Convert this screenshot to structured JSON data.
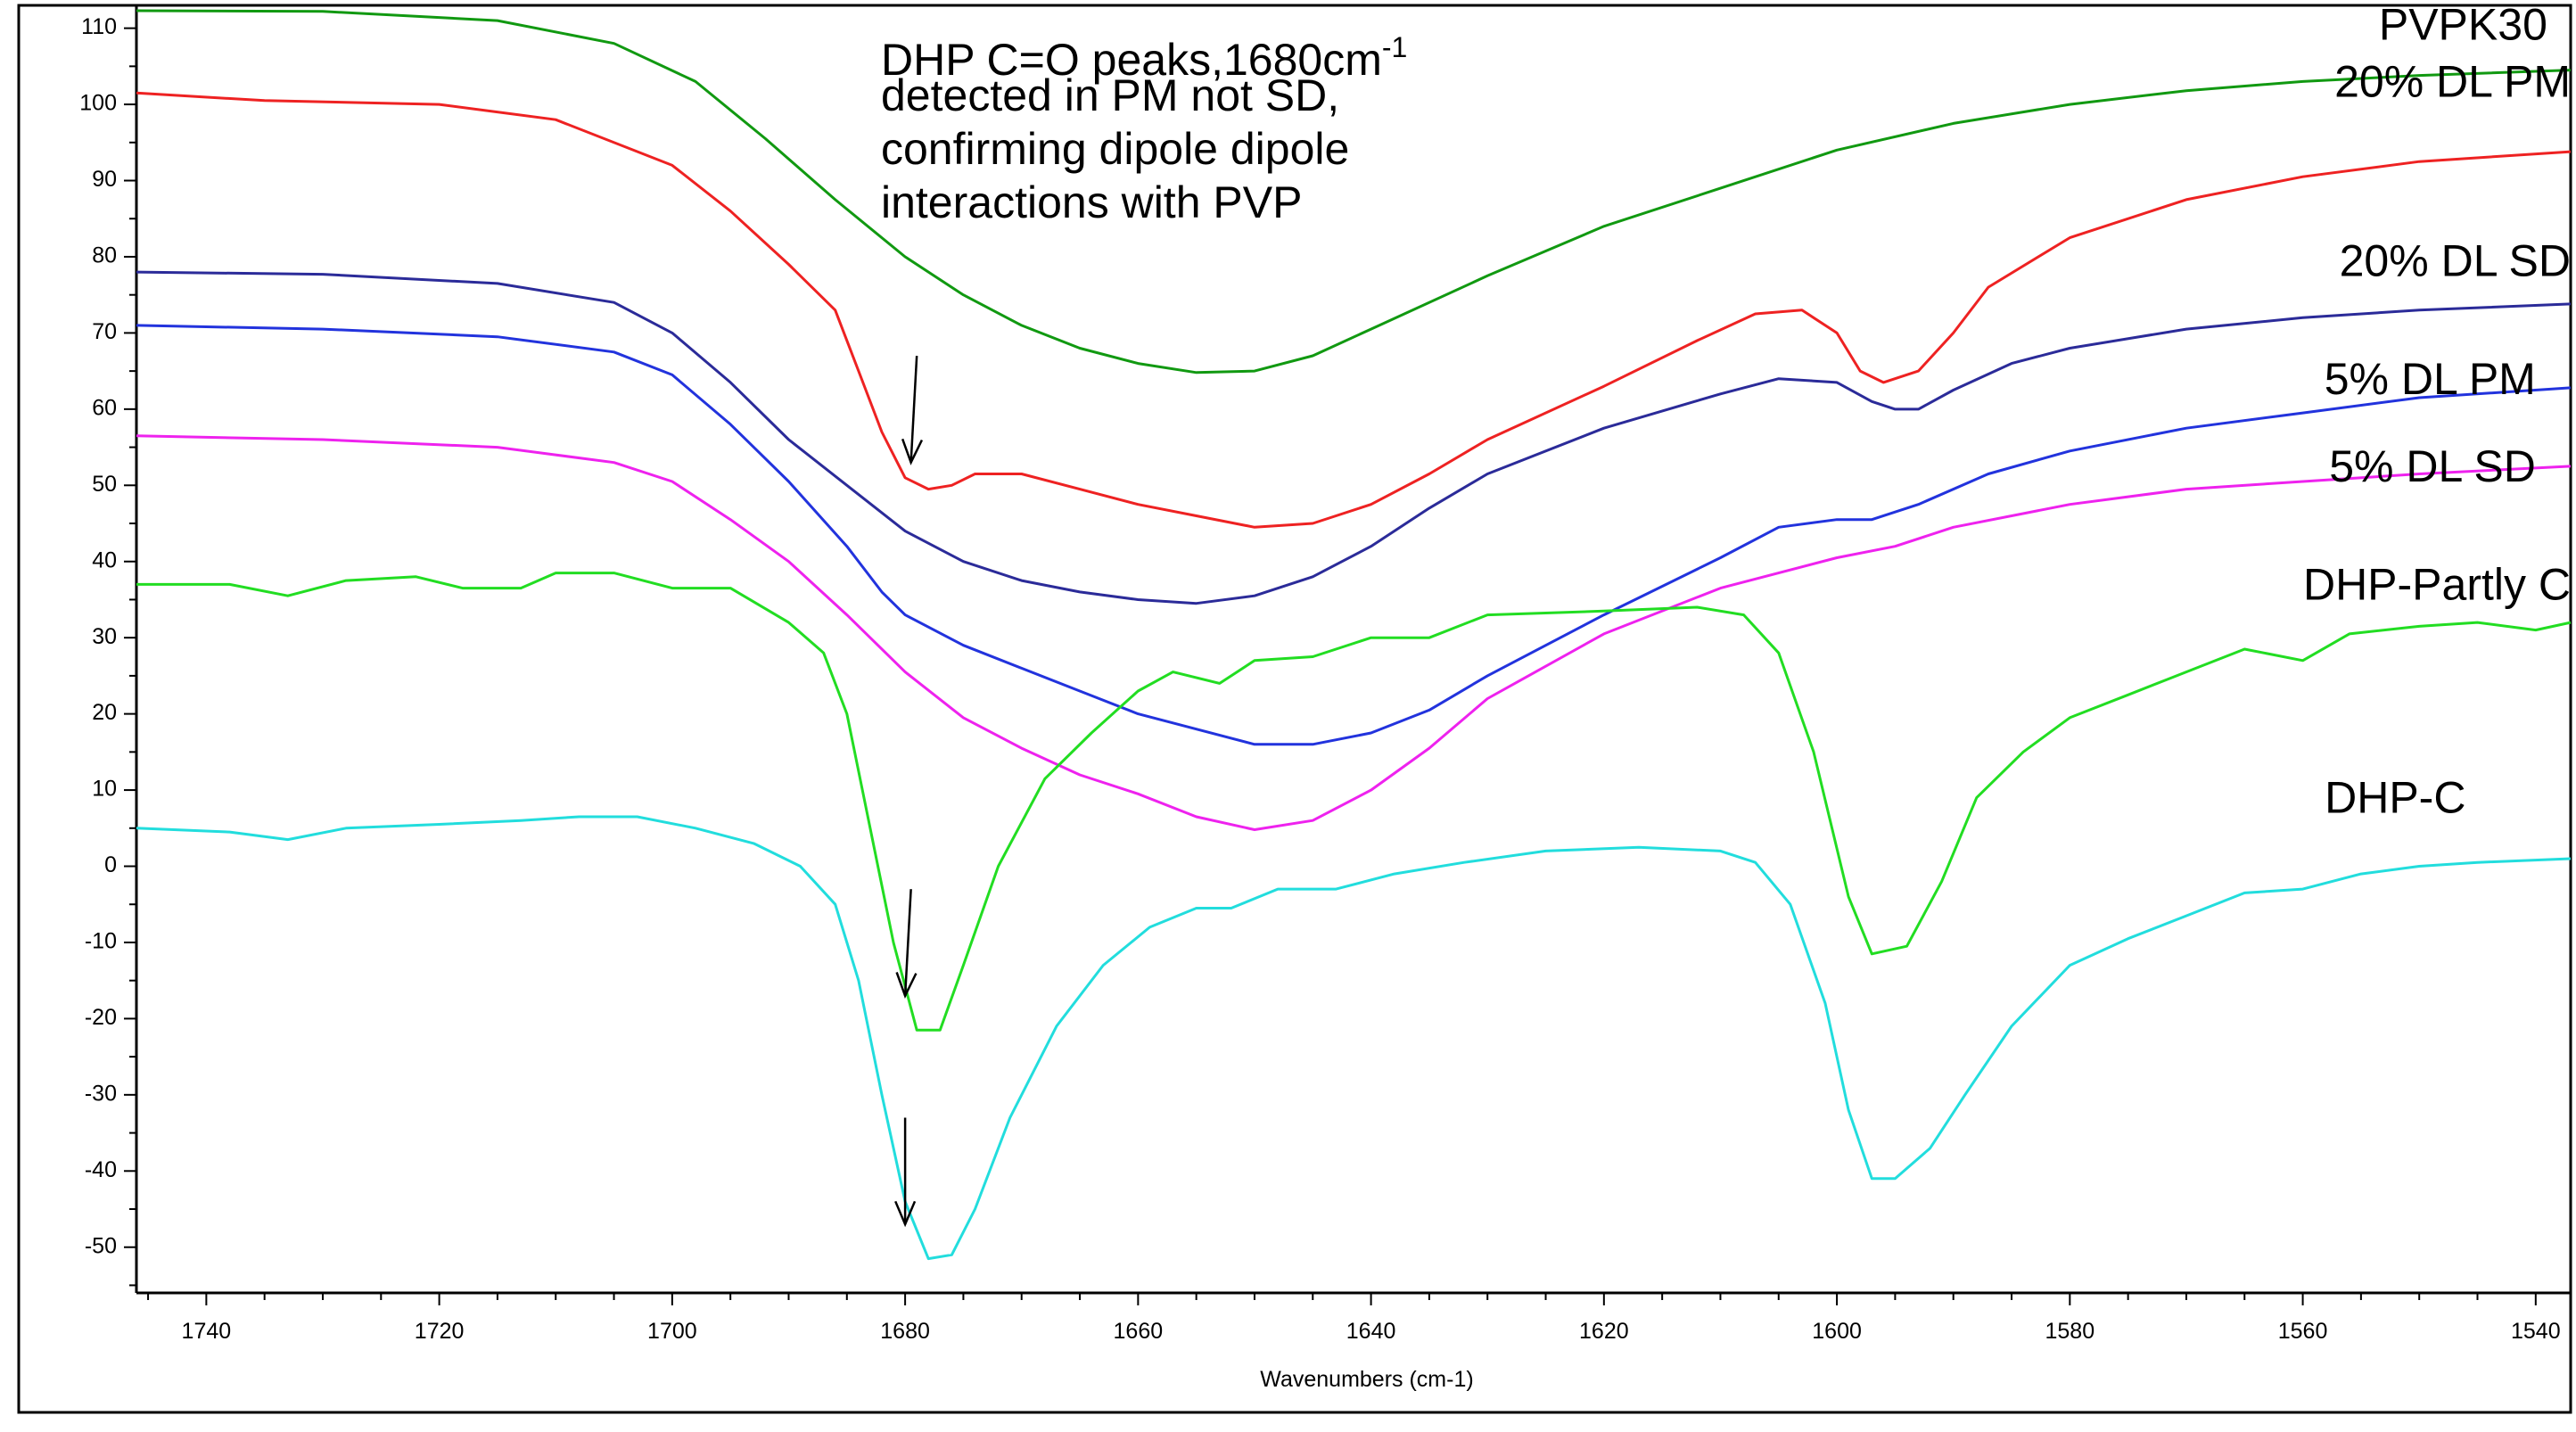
{
  "chart_data": {
    "type": "line",
    "title": "",
    "xlabel": "Wavenumbers (cm-1)",
    "ylabel": "",
    "xlim": [
      1746,
      1537
    ],
    "ylim": [
      -56,
      113
    ],
    "x_reversed": true,
    "grid": false,
    "xticks": [
      1740,
      1720,
      1700,
      1680,
      1660,
      1640,
      1620,
      1600,
      1580,
      1560,
      1540
    ],
    "yticks": [
      110,
      100,
      90,
      80,
      70,
      60,
      50,
      40,
      30,
      20,
      10,
      0,
      -10,
      -20,
      -30,
      -40,
      -50
    ],
    "annotation": {
      "lines": [
        [
          "DHP C=O peaks,1680cm",
          "-1"
        ],
        [
          "detected in PM not SD,"
        ],
        [
          "confirming dipole dipole"
        ],
        [
          "interactions with PVP"
        ]
      ]
    },
    "arrows": [
      {
        "name": "arrow-20pm",
        "x_from": 1679,
        "y_from": 67,
        "x_to": 1679.5,
        "y_to": 53
      },
      {
        "name": "arrow-partly",
        "x_from": 1679.5,
        "y_from": -3,
        "x_to": 1680,
        "y_to": -17
      },
      {
        "name": "arrow-dhpc",
        "x_from": 1680,
        "y_from": -33,
        "x_to": 1680,
        "y_to": -47
      }
    ],
    "series": [
      {
        "name": "PVPK30",
        "color": "#119911",
        "label_x": 1539,
        "label_y": 108.5,
        "points": [
          [
            1746,
            112.3
          ],
          [
            1730,
            112.2
          ],
          [
            1715,
            111.0
          ],
          [
            1705,
            108.0
          ],
          [
            1698,
            103.0
          ],
          [
            1692,
            95.5
          ],
          [
            1686,
            87.5
          ],
          [
            1680,
            80.0
          ],
          [
            1675,
            75.0
          ],
          [
            1670,
            71.0
          ],
          [
            1665,
            68.0
          ],
          [
            1660,
            66.0
          ],
          [
            1655,
            64.8
          ],
          [
            1650,
            65.0
          ],
          [
            1645,
            67.0
          ],
          [
            1640,
            70.5
          ],
          [
            1630,
            77.5
          ],
          [
            1620,
            84.0
          ],
          [
            1610,
            89.0
          ],
          [
            1600,
            94.0
          ],
          [
            1590,
            97.5
          ],
          [
            1580,
            100.0
          ],
          [
            1570,
            101.8
          ],
          [
            1560,
            103.0
          ],
          [
            1550,
            103.8
          ],
          [
            1537,
            104.5
          ]
        ]
      },
      {
        "name": "20% DL PM",
        "color": "#ee2222",
        "label_x": 1537,
        "label_y": 101,
        "points": [
          [
            1746,
            101.5
          ],
          [
            1735,
            100.5
          ],
          [
            1720,
            100.0
          ],
          [
            1710,
            98.0
          ],
          [
            1700,
            92.0
          ],
          [
            1695,
            86.0
          ],
          [
            1690,
            79.0
          ],
          [
            1686,
            73.0
          ],
          [
            1684,
            65.0
          ],
          [
            1682,
            57.0
          ],
          [
            1680,
            51.0
          ],
          [
            1678,
            49.5
          ],
          [
            1676,
            50.0
          ],
          [
            1674,
            51.5
          ],
          [
            1670,
            51.5
          ],
          [
            1665,
            49.5
          ],
          [
            1660,
            47.5
          ],
          [
            1655,
            46.0
          ],
          [
            1650,
            44.5
          ],
          [
            1645,
            45.0
          ],
          [
            1640,
            47.5
          ],
          [
            1635,
            51.5
          ],
          [
            1630,
            56.0
          ],
          [
            1620,
            63.0
          ],
          [
            1612,
            69.0
          ],
          [
            1607,
            72.5
          ],
          [
            1603,
            73.0
          ],
          [
            1600,
            70.0
          ],
          [
            1598,
            65.0
          ],
          [
            1596,
            63.5
          ],
          [
            1593,
            65.0
          ],
          [
            1590,
            70.0
          ],
          [
            1587,
            76.0
          ],
          [
            1580,
            82.5
          ],
          [
            1570,
            87.5
          ],
          [
            1560,
            90.5
          ],
          [
            1550,
            92.5
          ],
          [
            1537,
            93.8
          ]
        ]
      },
      {
        "name": "20% DL SD",
        "color": "#2b2b99",
        "label_x": 1537,
        "label_y": 77.5,
        "points": [
          [
            1746,
            78.0
          ],
          [
            1730,
            77.7
          ],
          [
            1715,
            76.5
          ],
          [
            1705,
            74.0
          ],
          [
            1700,
            70.0
          ],
          [
            1695,
            63.5
          ],
          [
            1690,
            56.0
          ],
          [
            1685,
            50.0
          ],
          [
            1680,
            44.0
          ],
          [
            1675,
            40.0
          ],
          [
            1670,
            37.5
          ],
          [
            1665,
            36.0
          ],
          [
            1660,
            35.0
          ],
          [
            1655,
            34.5
          ],
          [
            1650,
            35.5
          ],
          [
            1645,
            38.0
          ],
          [
            1640,
            42.0
          ],
          [
            1635,
            47.0
          ],
          [
            1630,
            51.5
          ],
          [
            1620,
            57.5
          ],
          [
            1610,
            62.0
          ],
          [
            1605,
            64.0
          ],
          [
            1600,
            63.5
          ],
          [
            1597,
            61.0
          ],
          [
            1595,
            60.0
          ],
          [
            1593,
            60.0
          ],
          [
            1590,
            62.5
          ],
          [
            1585,
            66.0
          ],
          [
            1580,
            68.0
          ],
          [
            1570,
            70.5
          ],
          [
            1560,
            72.0
          ],
          [
            1550,
            73.0
          ],
          [
            1537,
            73.8
          ]
        ]
      },
      {
        "name": "5% DL PM",
        "color": "#2233dd",
        "label_x": 1540,
        "label_y": 62,
        "points": [
          [
            1746,
            71.0
          ],
          [
            1730,
            70.5
          ],
          [
            1715,
            69.5
          ],
          [
            1705,
            67.5
          ],
          [
            1700,
            64.5
          ],
          [
            1695,
            58.0
          ],
          [
            1690,
            50.5
          ],
          [
            1685,
            42.0
          ],
          [
            1682,
            36.0
          ],
          [
            1680,
            33.0
          ],
          [
            1675,
            29.0
          ],
          [
            1670,
            26.0
          ],
          [
            1665,
            23.0
          ],
          [
            1660,
            20.0
          ],
          [
            1655,
            18.0
          ],
          [
            1650,
            16.0
          ],
          [
            1645,
            16.0
          ],
          [
            1640,
            17.5
          ],
          [
            1635,
            20.5
          ],
          [
            1630,
            25.0
          ],
          [
            1620,
            33.0
          ],
          [
            1610,
            40.5
          ],
          [
            1605,
            44.5
          ],
          [
            1600,
            45.5
          ],
          [
            1597,
            45.5
          ],
          [
            1593,
            47.5
          ],
          [
            1587,
            51.5
          ],
          [
            1580,
            54.5
          ],
          [
            1570,
            57.5
          ],
          [
            1560,
            59.5
          ],
          [
            1550,
            61.5
          ],
          [
            1537,
            62.8
          ]
        ]
      },
      {
        "name": "5% DL SD",
        "color": "#ee22ee",
        "label_x": 1540,
        "label_y": 50.5,
        "points": [
          [
            1746,
            56.5
          ],
          [
            1730,
            56.0
          ],
          [
            1715,
            55.0
          ],
          [
            1705,
            53.0
          ],
          [
            1700,
            50.5
          ],
          [
            1695,
            45.5
          ],
          [
            1690,
            40.0
          ],
          [
            1685,
            33.0
          ],
          [
            1680,
            25.5
          ],
          [
            1675,
            19.5
          ],
          [
            1670,
            15.5
          ],
          [
            1665,
            12.0
          ],
          [
            1660,
            9.5
          ],
          [
            1655,
            6.5
          ],
          [
            1650,
            4.8
          ],
          [
            1645,
            6.0
          ],
          [
            1640,
            10.0
          ],
          [
            1635,
            15.5
          ],
          [
            1630,
            22.0
          ],
          [
            1620,
            30.5
          ],
          [
            1610,
            36.5
          ],
          [
            1600,
            40.5
          ],
          [
            1595,
            42.0
          ],
          [
            1590,
            44.5
          ],
          [
            1580,
            47.5
          ],
          [
            1570,
            49.5
          ],
          [
            1560,
            50.5
          ],
          [
            1550,
            51.5
          ],
          [
            1537,
            52.5
          ]
        ]
      },
      {
        "name": "DHP-Partly C",
        "color": "#22dd22",
        "label_x": 1537,
        "label_y": 35,
        "points": [
          [
            1746,
            37.0
          ],
          [
            1738,
            37.0
          ],
          [
            1733,
            35.5
          ],
          [
            1728,
            37.5
          ],
          [
            1722,
            38.0
          ],
          [
            1718,
            36.5
          ],
          [
            1713,
            36.5
          ],
          [
            1710,
            38.5
          ],
          [
            1705,
            38.5
          ],
          [
            1700,
            36.5
          ],
          [
            1695,
            36.5
          ],
          [
            1690,
            32.0
          ],
          [
            1687,
            28.0
          ],
          [
            1685,
            20.0
          ],
          [
            1683,
            5.0
          ],
          [
            1681,
            -10.0
          ],
          [
            1679,
            -21.5
          ],
          [
            1677,
            -21.5
          ],
          [
            1675,
            -13.0
          ],
          [
            1672,
            0.0
          ],
          [
            1668,
            11.5
          ],
          [
            1664,
            17.5
          ],
          [
            1660,
            23.0
          ],
          [
            1657,
            25.5
          ],
          [
            1653,
            24.0
          ],
          [
            1650,
            27.0
          ],
          [
            1645,
            27.5
          ],
          [
            1640,
            30.0
          ],
          [
            1635,
            30.0
          ],
          [
            1630,
            33.0
          ],
          [
            1620,
            33.5
          ],
          [
            1612,
            34.0
          ],
          [
            1608,
            33.0
          ],
          [
            1605,
            28.0
          ],
          [
            1602,
            15.0
          ],
          [
            1599,
            -4.0
          ],
          [
            1597,
            -11.5
          ],
          [
            1594,
            -10.5
          ],
          [
            1591,
            -2.0
          ],
          [
            1588,
            9.0
          ],
          [
            1584,
            15.0
          ],
          [
            1580,
            19.5
          ],
          [
            1575,
            22.5
          ],
          [
            1570,
            25.5
          ],
          [
            1565,
            28.5
          ],
          [
            1560,
            27.0
          ],
          [
            1556,
            30.5
          ],
          [
            1550,
            31.5
          ],
          [
            1545,
            32.0
          ],
          [
            1540,
            31.0
          ],
          [
            1537,
            32.0
          ]
        ]
      },
      {
        "name": "DHP-C",
        "color": "#22dddd",
        "label_x": 1546,
        "label_y": 7,
        "points": [
          [
            1746,
            5.0
          ],
          [
            1738,
            4.5
          ],
          [
            1733,
            3.5
          ],
          [
            1728,
            5.0
          ],
          [
            1720,
            5.5
          ],
          [
            1713,
            6.0
          ],
          [
            1708,
            6.5
          ],
          [
            1703,
            6.5
          ],
          [
            1698,
            5.0
          ],
          [
            1693,
            3.0
          ],
          [
            1689,
            0.0
          ],
          [
            1686,
            -5.0
          ],
          [
            1684,
            -15.0
          ],
          [
            1682,
            -30.0
          ],
          [
            1680,
            -44.0
          ],
          [
            1678,
            -51.5
          ],
          [
            1676,
            -51.0
          ],
          [
            1674,
            -45.0
          ],
          [
            1671,
            -33.0
          ],
          [
            1667,
            -21.0
          ],
          [
            1663,
            -13.0
          ],
          [
            1659,
            -8.0
          ],
          [
            1655,
            -5.5
          ],
          [
            1652,
            -5.5
          ],
          [
            1648,
            -3.0
          ],
          [
            1643,
            -3.0
          ],
          [
            1638,
            -1.0
          ],
          [
            1632,
            0.5
          ],
          [
            1625,
            2.0
          ],
          [
            1617,
            2.5
          ],
          [
            1610,
            2.0
          ],
          [
            1607,
            0.5
          ],
          [
            1604,
            -5.0
          ],
          [
            1601,
            -18.0
          ],
          [
            1599,
            -32.0
          ],
          [
            1597,
            -41.0
          ],
          [
            1595,
            -41.0
          ],
          [
            1592,
            -37.0
          ],
          [
            1589,
            -30.0
          ],
          [
            1585,
            -21.0
          ],
          [
            1580,
            -13.0
          ],
          [
            1575,
            -9.5
          ],
          [
            1570,
            -6.5
          ],
          [
            1565,
            -3.5
          ],
          [
            1560,
            -3.0
          ],
          [
            1555,
            -1.0
          ],
          [
            1550,
            0.0
          ],
          [
            1545,
            0.5
          ],
          [
            1537,
            1.0
          ]
        ]
      }
    ]
  }
}
